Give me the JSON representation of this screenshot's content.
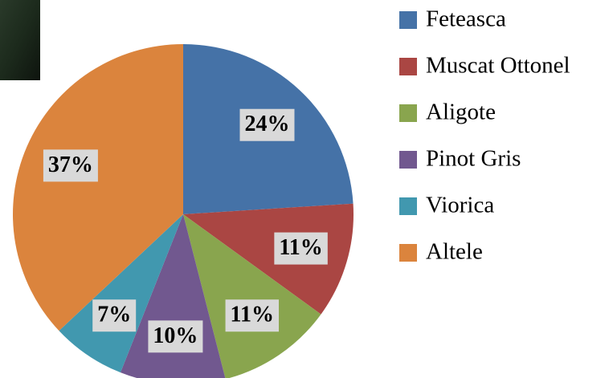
{
  "chart_data": {
    "type": "pie",
    "categories": [
      "Feteasca",
      "Muscat Ottonel",
      "Aligote",
      "Pinot Gris",
      "Viorica",
      "Altele"
    ],
    "values": [
      24,
      11,
      11,
      10,
      7,
      37
    ],
    "value_labels": [
      "24%",
      "11%",
      "11%",
      "10%",
      "7%",
      "37%"
    ],
    "colors": [
      "#4572a7",
      "#aa4643",
      "#89a54e",
      "#71588f",
      "#4198af",
      "#db843d"
    ],
    "legend": "right"
  }
}
